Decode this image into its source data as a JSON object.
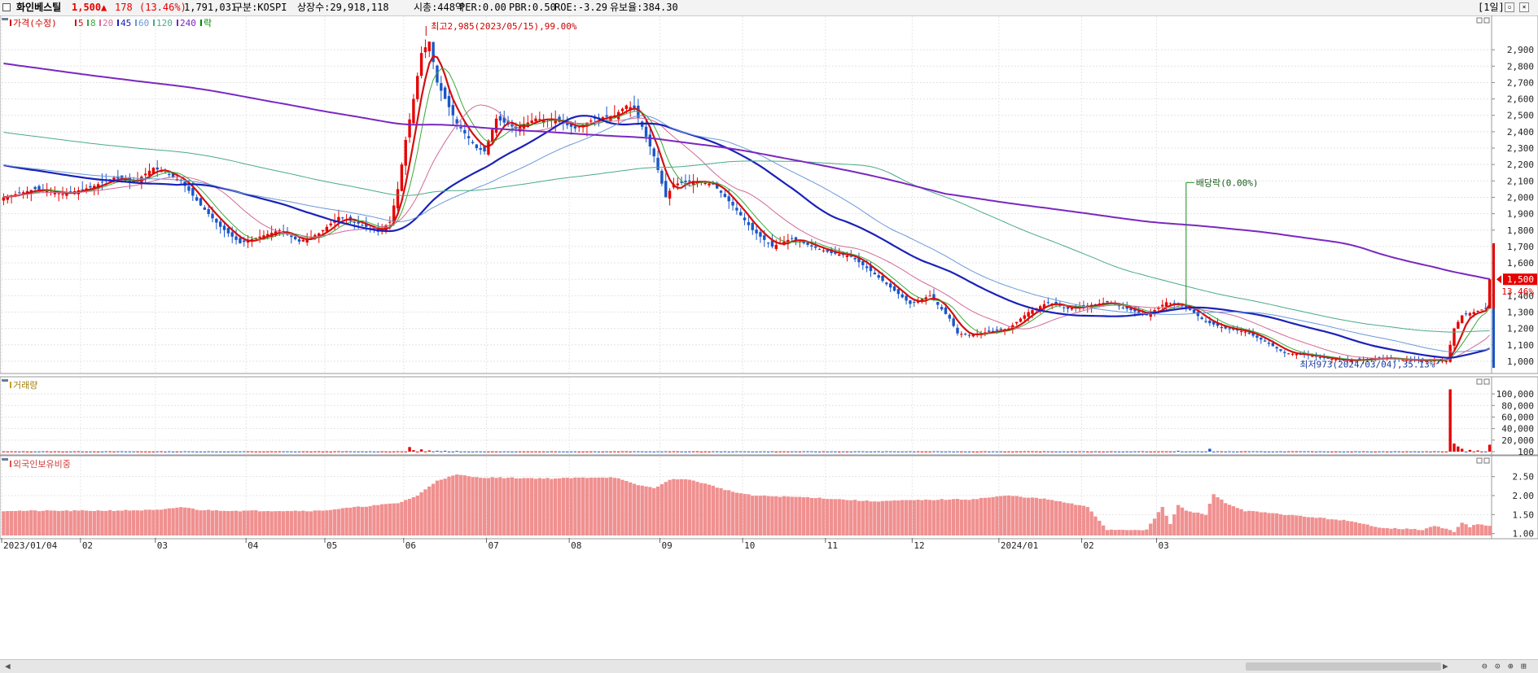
{
  "header": {
    "name": "화인베스틸",
    "price": "1,500",
    "change_arrow": "▲",
    "change": "178",
    "change_pct": "(13.46%)",
    "volume": "1,791,031",
    "market": "구분:KOSPI",
    "shares": "상장수:29,918,118",
    "marketcap": "시총:448억",
    "per": "PER:0.00",
    "pbr": "PBR:0.50",
    "roe": "ROE:-3.29",
    "retention": "유보율:384.30",
    "period": "[1일]"
  },
  "colors": {
    "up": "#e60000",
    "down": "#1a56c8",
    "ma5": "#d31010",
    "ma8": "#3aa83a",
    "ma20": "#d36a98",
    "ma45": "#1a22b8",
    "ma60": "#6a98d8",
    "ma120": "#4aaa8a",
    "ma240": "#7a28c0",
    "foreign": "#f09090"
  },
  "legend_price": [
    {
      "label": "가격(수정)",
      "color": "#cc0000"
    },
    {
      "label": "5",
      "color": "#d31010"
    },
    {
      "label": "8",
      "color": "#3aa83a"
    },
    {
      "label": "20",
      "color": "#d36a98"
    },
    {
      "label": "45",
      "color": "#1a22b8"
    },
    {
      "label": "60",
      "color": "#6a98d8"
    },
    {
      "label": "120",
      "color": "#4aaa8a"
    },
    {
      "label": "240",
      "color": "#7a28c0"
    },
    {
      "label": "락",
      "color": "#008800"
    }
  ],
  "panel_labels": {
    "volume": "거래량",
    "foreign": "외국인보유비중"
  },
  "chart_data": [
    {
      "type": "candlestick",
      "title": "가격(수정)",
      "ylim": [
        950,
        3000
      ],
      "y_ticks": [
        1000,
        1100,
        1200,
        1300,
        1400,
        1500,
        1600,
        1700,
        1800,
        1900,
        2000,
        2100,
        2200,
        2300,
        2400,
        2500,
        2600,
        2700,
        2800,
        2900
      ],
      "y_tick_labels": [
        "1,000",
        "1,100",
        "1,200",
        "1,300",
        "1,400",
        "1,500",
        "1,600",
        "1,700",
        "1,800",
        "1,900",
        "2,000",
        "2,100",
        "2,200",
        "2,300",
        "2,400",
        "2,500",
        "2,600",
        "2,700",
        "2,800",
        "2,900"
      ],
      "x_labels": [
        "2023/01/04",
        "02",
        "03",
        "04",
        "05",
        "06",
        "07",
        "08",
        "09",
        "10",
        "11",
        "12",
        "2024/01",
        "02",
        "03"
      ],
      "close_keypoints": [
        [
          0,
          2000
        ],
        [
          8,
          2050
        ],
        [
          15,
          2020
        ],
        [
          22,
          2060
        ],
        [
          28,
          2120
        ],
        [
          33,
          2090
        ],
        [
          38,
          2180
        ],
        [
          40,
          2160
        ],
        [
          45,
          2100
        ],
        [
          50,
          1950
        ],
        [
          55,
          1820
        ],
        [
          60,
          1720
        ],
        [
          65,
          1760
        ],
        [
          70,
          1800
        ],
        [
          75,
          1730
        ],
        [
          80,
          1780
        ],
        [
          85,
          1880
        ],
        [
          90,
          1840
        ],
        [
          95,
          1790
        ],
        [
          98,
          1850
        ],
        [
          100,
          2050
        ],
        [
          102,
          2350
        ],
        [
          104,
          2600
        ],
        [
          106,
          2880
        ],
        [
          108,
          2950
        ],
        [
          110,
          2700
        ],
        [
          112,
          2600
        ],
        [
          115,
          2450
        ],
        [
          120,
          2300
        ],
        [
          122,
          2280
        ],
        [
          125,
          2480
        ],
        [
          130,
          2420
        ],
        [
          135,
          2480
        ],
        [
          140,
          2470
        ],
        [
          145,
          2420
        ],
        [
          150,
          2480
        ],
        [
          155,
          2500
        ],
        [
          158,
          2560
        ],
        [
          160,
          2540
        ],
        [
          162,
          2430
        ],
        [
          165,
          2250
        ],
        [
          168,
          2000
        ],
        [
          170,
          2080
        ],
        [
          175,
          2100
        ],
        [
          180,
          2080
        ],
        [
          185,
          1950
        ],
        [
          190,
          1800
        ],
        [
          195,
          1700
        ],
        [
          200,
          1750
        ],
        [
          205,
          1700
        ],
        [
          210,
          1660
        ],
        [
          215,
          1640
        ],
        [
          220,
          1550
        ],
        [
          225,
          1450
        ],
        [
          230,
          1350
        ],
        [
          235,
          1400
        ],
        [
          240,
          1260
        ],
        [
          242,
          1170
        ],
        [
          245,
          1160
        ],
        [
          250,
          1180
        ],
        [
          255,
          1200
        ],
        [
          260,
          1300
        ],
        [
          265,
          1360
        ],
        [
          270,
          1320
        ],
        [
          275,
          1340
        ],
        [
          280,
          1360
        ],
        [
          285,
          1320
        ],
        [
          290,
          1280
        ],
        [
          295,
          1360
        ],
        [
          300,
          1330
        ],
        [
          305,
          1240
        ],
        [
          310,
          1200
        ],
        [
          315,
          1180
        ],
        [
          320,
          1120
        ],
        [
          325,
          1050
        ],
        [
          330,
          1040
        ],
        [
          335,
          1020
        ],
        [
          340,
          1005
        ],
        [
          345,
          1010
        ],
        [
          350,
          1020
        ],
        [
          355,
          1010
        ],
        [
          360,
          1005
        ],
        [
          363,
          1010
        ],
        [
          366,
          1000
        ],
        [
          368,
          1200
        ],
        [
          370,
          1280
        ],
        [
          373,
          1300
        ],
        [
          376,
          1322
        ],
        [
          377,
          1500
        ]
      ],
      "annotations": [
        {
          "text": "최고2,985(2023/05/15),99.00%",
          "x_index": 108,
          "value": 2985
        },
        {
          "text": "최저973(2024/03/04),35.13%",
          "x_index": 366,
          "value": 973
        },
        {
          "text": "배당락(0.00%)",
          "x_index": 300,
          "value": 2100
        }
      ],
      "moving_averages": [
        {
          "name": "5",
          "period": 5
        },
        {
          "name": "8",
          "period": 8
        },
        {
          "name": "20",
          "period": 20
        },
        {
          "name": "45",
          "period": 45
        },
        {
          "name": "60",
          "period": 60
        },
        {
          "name": "120",
          "period": 120
        },
        {
          "name": "240",
          "period": 240
        }
      ],
      "last_price_label": "1,500",
      "last_pct_label": "13.46%"
    },
    {
      "type": "bar",
      "title": "거래량",
      "ylim": [
        0,
        110000
      ],
      "y_ticks": [
        100,
        20000,
        40000,
        60000,
        80000,
        100000
      ],
      "y_tick_labels": [
        "100",
        "20,000",
        "40,000",
        "60,000",
        "80,000",
        "100,000"
      ],
      "spikes": [
        [
          103,
          8000
        ],
        [
          104,
          2500
        ],
        [
          106,
          4000
        ],
        [
          108,
          2000
        ],
        [
          110,
          1500
        ],
        [
          112,
          1500
        ],
        [
          115,
          1200
        ],
        [
          298,
          1500
        ],
        [
          306,
          5000
        ],
        [
          367,
          108000
        ],
        [
          368,
          14000
        ],
        [
          369,
          9000
        ],
        [
          370,
          5000
        ],
        [
          372,
          3000
        ],
        [
          374,
          2000
        ],
        [
          377,
          12000
        ]
      ],
      "base_value": 400
    },
    {
      "type": "bar",
      "title": "외국인보유비중",
      "ylim": [
        0.95,
        2.75
      ],
      "y_ticks": [
        1.0,
        1.5,
        2.0,
        2.5
      ],
      "y_tick_labels": [
        "1.00",
        "1.50",
        "2.00",
        "2.50"
      ],
      "value_keypoints": [
        [
          0,
          1.6
        ],
        [
          20,
          1.6
        ],
        [
          40,
          1.62
        ],
        [
          45,
          1.7
        ],
        [
          50,
          1.62
        ],
        [
          60,
          1.6
        ],
        [
          80,
          1.6
        ],
        [
          100,
          1.8
        ],
        [
          105,
          2.0
        ],
        [
          110,
          2.4
        ],
        [
          115,
          2.55
        ],
        [
          120,
          2.48
        ],
        [
          140,
          2.45
        ],
        [
          150,
          2.48
        ],
        [
          155,
          2.48
        ],
        [
          160,
          2.3
        ],
        [
          165,
          2.2
        ],
        [
          170,
          2.45
        ],
        [
          175,
          2.4
        ],
        [
          185,
          2.1
        ],
        [
          190,
          2.0
        ],
        [
          205,
          1.95
        ],
        [
          220,
          1.85
        ],
        [
          240,
          1.9
        ],
        [
          245,
          1.9
        ],
        [
          250,
          1.95
        ],
        [
          255,
          2.0
        ],
        [
          265,
          1.9
        ],
        [
          275,
          1.7
        ],
        [
          280,
          1.1
        ],
        [
          285,
          1.1
        ],
        [
          290,
          1.1
        ],
        [
          294,
          1.7
        ],
        [
          296,
          1.25
        ],
        [
          298,
          1.75
        ],
        [
          300,
          1.6
        ],
        [
          305,
          1.5
        ],
        [
          307,
          2.05
        ],
        [
          310,
          1.8
        ],
        [
          315,
          1.6
        ],
        [
          320,
          1.55
        ],
        [
          330,
          1.45
        ],
        [
          340,
          1.35
        ],
        [
          350,
          1.15
        ],
        [
          360,
          1.1
        ],
        [
          363,
          1.2
        ],
        [
          366,
          1.12
        ],
        [
          368,
          1.05
        ],
        [
          370,
          1.3
        ],
        [
          372,
          1.18
        ],
        [
          374,
          1.25
        ],
        [
          376,
          1.2
        ]
      ]
    }
  ]
}
